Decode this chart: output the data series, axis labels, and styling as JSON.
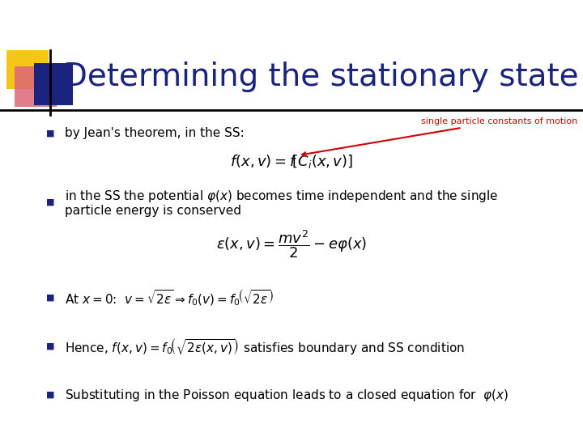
{
  "title": "Determining the stationary state",
  "title_color": "#1a237e",
  "title_fontsize": 28,
  "background_color": "#ffffff",
  "accent_yellow": "#f5c518",
  "accent_red_pink": "#dd6677",
  "accent_blue": "#1a237e",
  "bullet_color": "#1a237e",
  "text_color": "#000000",
  "bullet_char": "■",
  "annotation_color": "#cc0000",
  "annotation_text": "single particle constants of motion"
}
